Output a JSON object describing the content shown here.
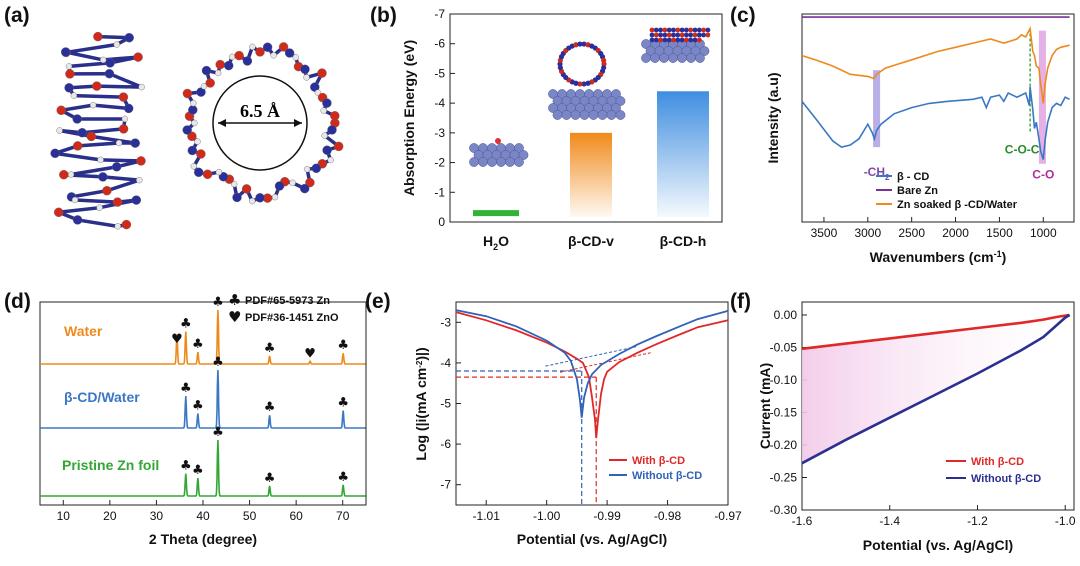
{
  "colors": {
    "water": "#ee8a1c",
    "cd_water": "#3a78c4",
    "pristine": "#33a633",
    "beta_cd": "#3a78c4",
    "bare_zn": "#7a2f9a",
    "zn_soaked": "#ee8a1c",
    "with_cd": "#e02828",
    "without_cd": "#2f62b8",
    "without_cd_f": "#2c2f92",
    "shade_purple": "#8a7ad6",
    "shade_pink": "#d070d0"
  },
  "chart_data": [
    {
      "panel": "(a)",
      "type": "other",
      "annotation": "6.5 Å",
      "icon": "beta-cyclodextrin-molecular-models"
    },
    {
      "panel": "(b)",
      "type": "bar",
      "categories": [
        "H2O",
        "β-CD-v",
        "β-CD-h"
      ],
      "values": [
        -0.4,
        -3.0,
        -4.4
      ],
      "ylabel": "Absorption Energy (eV)",
      "ylim": [
        0,
        -7
      ],
      "yticks": [
        "-7",
        "-6",
        "-5",
        "-4",
        "-3",
        "-2",
        "-1",
        "0"
      ],
      "bar_colors": [
        "#33b233",
        "#f08a1a",
        "#3f8ee0"
      ]
    },
    {
      "panel": "(c)",
      "type": "line",
      "xlabel": "Wavenumbers (cm",
      "xlabel_sup": "-1",
      "xlabel_end": ")",
      "ylabel": "Intensity (a.u)",
      "xlim": [
        3750,
        650
      ],
      "xticks": [
        "3500",
        "3000",
        "2500",
        "2000",
        "1500",
        "1000"
      ],
      "series": [
        {
          "name": "β - CD",
          "x": [
            3750,
            3600,
            3400,
            3300,
            3200,
            3100,
            3000,
            2950,
            2925,
            2900,
            2850,
            2700,
            2500,
            2300,
            2100,
            1800,
            1700,
            1650,
            1600,
            1500,
            1450,
            1400,
            1300,
            1200,
            1160,
            1150,
            1120,
            1100,
            1080,
            1050,
            1030,
            1000,
            980,
            950,
            900,
            850,
            800,
            750,
            700
          ],
          "y": [
            0.58,
            0.5,
            0.39,
            0.36,
            0.37,
            0.4,
            0.47,
            0.43,
            0.4,
            0.44,
            0.47,
            0.52,
            0.55,
            0.57,
            0.58,
            0.59,
            0.6,
            0.55,
            0.6,
            0.61,
            0.58,
            0.62,
            0.6,
            0.62,
            0.56,
            0.65,
            0.54,
            0.45,
            0.48,
            0.4,
            0.34,
            0.3,
            0.39,
            0.48,
            0.55,
            0.57,
            0.56,
            0.6,
            0.59
          ]
        },
        {
          "name": "Bare Zn",
          "x": [
            3750,
            700
          ],
          "y": [
            0.985,
            0.985
          ]
        },
        {
          "name": "Zn soaked β -CD/Water",
          "x": [
            3750,
            3600,
            3400,
            3200,
            3000,
            2930,
            2900,
            2800,
            2500,
            2200,
            2000,
            1800,
            1600,
            1450,
            1300,
            1250,
            1200,
            1150,
            1120,
            1100,
            1080,
            1050,
            1030,
            1000,
            980,
            950,
            900,
            850,
            800,
            700
          ],
          "y": [
            0.8,
            0.78,
            0.75,
            0.71,
            0.7,
            0.69,
            0.71,
            0.74,
            0.78,
            0.82,
            0.84,
            0.86,
            0.88,
            0.86,
            0.88,
            0.9,
            0.89,
            0.93,
            0.82,
            0.8,
            0.75,
            0.74,
            0.66,
            0.57,
            0.66,
            0.74,
            0.8,
            0.83,
            0.84,
            0.85
          ]
        }
      ],
      "annotations": [
        {
          "text": "-CH",
          "sub": "2",
          "x": 2900
        },
        {
          "text": "C-O-C",
          "x": 1150
        },
        {
          "text": "C-O",
          "x": 1000
        }
      ],
      "legend": [
        "β - CD",
        "Bare Zn",
        "Zn soaked β -CD/Water"
      ]
    },
    {
      "panel": "(d)",
      "type": "line",
      "xlabel": "2 Theta (degree)",
      "xlim": [
        5,
        75
      ],
      "xticks": [
        "10",
        "20",
        "30",
        "40",
        "50",
        "60",
        "70"
      ],
      "series": [
        {
          "name": "Water",
          "peaks": [
            [
              34.4,
              0.55
            ],
            [
              36.3,
              0.6
            ],
            [
              38.9,
              0.22
            ],
            [
              43.2,
              1.0
            ],
            [
              54.3,
              0.15
            ],
            [
              63.0,
              0.05
            ],
            [
              70.1,
              0.2
            ]
          ]
        },
        {
          "name": "β-CD/Water",
          "peaks": [
            [
              36.3,
              0.55
            ],
            [
              38.9,
              0.25
            ],
            [
              43.2,
              1.0
            ],
            [
              54.3,
              0.22
            ],
            [
              70.1,
              0.3
            ]
          ]
        },
        {
          "name": "Pristine Zn foil",
          "peaks": [
            [
              36.3,
              0.4
            ],
            [
              38.9,
              0.32
            ],
            [
              43.2,
              1.0
            ],
            [
              54.3,
              0.18
            ],
            [
              70.1,
              0.2
            ]
          ]
        }
      ],
      "markers": {
        "Water": [
          [
            "♣",
            36.3
          ],
          [
            "♣",
            38.9
          ],
          [
            "♣",
            43.2
          ],
          [
            "♣",
            54.3
          ],
          [
            "♥",
            63.0
          ],
          [
            "♣",
            70.1
          ],
          [
            "♥",
            34.4
          ]
        ],
        "β-CD/Water": [
          [
            "♣",
            36.3
          ],
          [
            "♣",
            38.9
          ],
          [
            "♣",
            43.2
          ],
          [
            "♣",
            54.3
          ],
          [
            "♣",
            70.1
          ]
        ],
        "Pristine Zn foil": [
          [
            "♣",
            36.3
          ],
          [
            "♣",
            38.9
          ],
          [
            "♣",
            43.2
          ],
          [
            "♣",
            54.3
          ],
          [
            "♣",
            70.1
          ]
        ]
      },
      "legend": [
        {
          "symbol": "♣",
          "text": "PDF#65-5973 Zn"
        },
        {
          "symbol": "♥",
          "text": "PDF#36-1451 ZnO"
        }
      ]
    },
    {
      "panel": "(e)",
      "type": "line",
      "xlabel": "Potential (vs. Ag/AgCl)",
      "ylabel": "Log (|i(mA cm",
      "ylabel_sup": "-2",
      "ylabel_end": ")|)",
      "xlim": [
        -1.015,
        -0.97
      ],
      "ylim": [
        -7.5,
        -2.5
      ],
      "xticks": [
        "-1.01",
        "-1.00",
        "-0.99",
        "-0.98",
        "-0.97"
      ],
      "yticks": [
        "-3",
        "-4",
        "-5",
        "-6",
        "-7"
      ],
      "series": [
        {
          "name": "With β-CD",
          "e_corr": -0.9918,
          "log_i_corr": -4.35,
          "x": [
            -1.015,
            -1.01,
            -1.005,
            -1.0,
            -0.997,
            -0.995,
            -0.994,
            -0.993,
            -0.9925,
            -0.992,
            -0.9918,
            -0.9915,
            -0.991,
            -0.9905,
            -0.99,
            -0.988,
            -0.985,
            -0.982,
            -0.978,
            -0.975,
            -0.97
          ],
          "y": [
            -2.75,
            -2.95,
            -3.2,
            -3.5,
            -3.72,
            -3.9,
            -4.0,
            -4.35,
            -4.85,
            -5.4,
            -5.85,
            -5.4,
            -4.75,
            -4.4,
            -4.22,
            -3.98,
            -3.75,
            -3.55,
            -3.3,
            -3.12,
            -2.95
          ]
        },
        {
          "name": "Without β-CD",
          "e_corr": -0.9942,
          "log_i_corr": -4.2,
          "x": [
            -1.015,
            -1.01,
            -1.005,
            -1.0,
            -0.997,
            -0.996,
            -0.995,
            -0.9945,
            -0.9942,
            -0.9938,
            -0.9932,
            -0.9925,
            -0.991,
            -0.988,
            -0.985,
            -0.982,
            -0.978,
            -0.975,
            -0.97
          ],
          "y": [
            -2.7,
            -2.85,
            -3.1,
            -3.45,
            -3.75,
            -3.95,
            -4.4,
            -4.9,
            -5.35,
            -4.85,
            -4.5,
            -4.28,
            -4.05,
            -3.78,
            -3.55,
            -3.35,
            -3.1,
            -2.92,
            -2.72
          ]
        }
      ],
      "legend": [
        "With β-CD",
        "Without β-CD"
      ]
    },
    {
      "panel": "(f)",
      "type": "line",
      "xlabel": "Potential (vs. Ag/AgCl)",
      "ylabel": "Current (mA)",
      "xlim": [
        -1.6,
        -0.98
      ],
      "ylim": [
        -0.3,
        0.02
      ],
      "xticks": [
        "-1.6",
        "-1.4",
        "-1.2",
        "-1.0"
      ],
      "yticks": [
        "0.00",
        "-0.05",
        "-0.10",
        "-0.15",
        "-0.20",
        "-0.25",
        "-0.30"
      ],
      "series": [
        {
          "name": "With β-CD",
          "x": [
            -1.6,
            -1.5,
            -1.4,
            -1.3,
            -1.2,
            -1.1,
            -1.05,
            -1.02,
            -1.0,
            -0.99
          ],
          "y": [
            -0.052,
            -0.044,
            -0.036,
            -0.028,
            -0.02,
            -0.012,
            -0.007,
            -0.003,
            -0.001,
            0.0
          ]
        },
        {
          "name": "Without β-CD",
          "x": [
            -1.6,
            -1.5,
            -1.4,
            -1.3,
            -1.2,
            -1.1,
            -1.05,
            -1.02,
            -1.0,
            -0.99
          ],
          "y": [
            -0.228,
            -0.192,
            -0.158,
            -0.124,
            -0.09,
            -0.054,
            -0.034,
            -0.016,
            -0.004,
            0.0
          ]
        }
      ],
      "legend": [
        "With  β-CD",
        "Without  β-CD"
      ]
    }
  ]
}
